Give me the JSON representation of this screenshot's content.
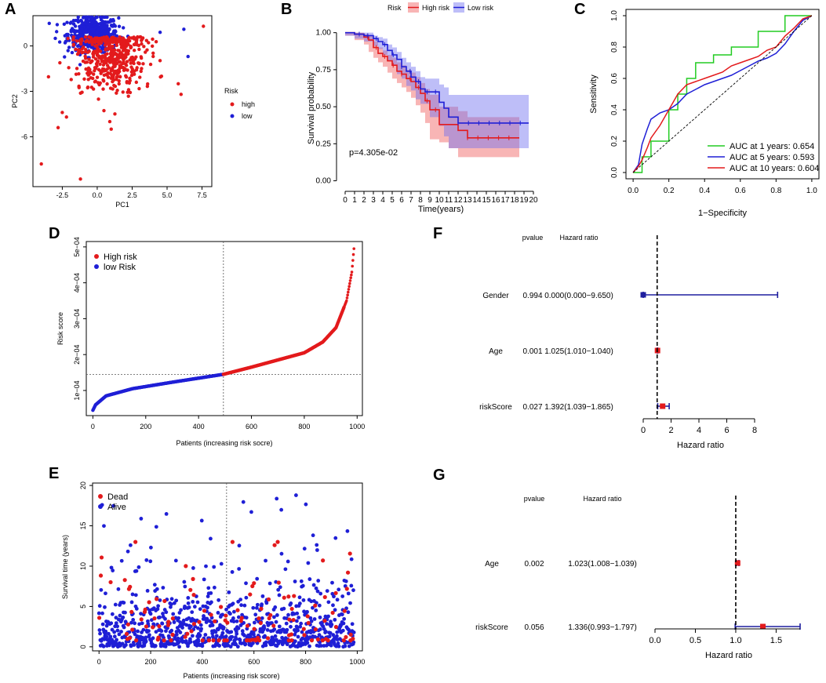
{
  "panels": {
    "A": "A",
    "B": "B",
    "C": "C",
    "D": "D",
    "E": "E",
    "F": "F",
    "G": "G"
  },
  "chart_data": [
    {
      "id": "A",
      "type": "scatter",
      "title": "",
      "xlabel": "PC1",
      "ylabel": "PC2",
      "xlim": [
        -4.6,
        8.2
      ],
      "ylim": [
        -9.3,
        2.0
      ],
      "xticks": [
        "-2.5",
        "0.0",
        "2.5",
        "5.0",
        "7.5"
      ],
      "xtick_values": [
        -2.5,
        0,
        2.5,
        5.0,
        7.5
      ],
      "yticks": [
        "0",
        "-3",
        "-6"
      ],
      "ytick_values": [
        0,
        -3,
        -6
      ],
      "legend_title": "Risk",
      "legend": [
        "high",
        "low"
      ],
      "colors": {
        "high": "#e31a1c",
        "low": "#1f1fd6"
      },
      "series": [
        {
          "name": "high",
          "cluster_center": [
            0.9,
            -0.6
          ],
          "spread": [
            1.3,
            1.3
          ],
          "n": 480,
          "outliers": [
            [
              -4.0,
              -7.8
            ],
            [
              -1.2,
              -8.8
            ],
            [
              -2.8,
              -5.4
            ],
            [
              -2.5,
              -4.4
            ],
            [
              1.0,
              -5.5
            ],
            [
              6.0,
              -3.2
            ],
            [
              7.6,
              1.3
            ],
            [
              4.6,
              -2.0
            ],
            [
              5.8,
              -2.5
            ],
            [
              -2.2,
              -4.7
            ],
            [
              0.9,
              -5.0
            ],
            [
              2.8,
              -2.4
            ]
          ]
        },
        {
          "name": "low",
          "cluster_center": [
            -0.3,
            0.8
          ],
          "spread": [
            0.9,
            0.6
          ],
          "n": 500,
          "outliers": [
            [
              6.2,
              1.1
            ],
            [
              6.5,
              -0.7
            ],
            [
              4.5,
              0.9
            ],
            [
              -3.0,
              0.5
            ]
          ]
        }
      ]
    },
    {
      "id": "B",
      "type": "line",
      "title": "",
      "xlabel": "Time(years)",
      "ylabel": "Survival probability",
      "xlim": [
        0,
        20
      ],
      "ylim": [
        0,
        1
      ],
      "xticks": [
        "0",
        "1",
        "2",
        "3",
        "4",
        "5",
        "6",
        "7",
        "8",
        "9",
        "10",
        "11",
        "12",
        "13",
        "14",
        "15",
        "16",
        "17",
        "18",
        "19",
        "20"
      ],
      "yticks": [
        "0.00",
        "0.25",
        "0.50",
        "0.75",
        "1.00"
      ],
      "ytick_values": [
        0,
        0.25,
        0.5,
        0.75,
        1.0
      ],
      "legend_title": "Risk",
      "legend": [
        "High risk",
        "Low risk"
      ],
      "annotation": "p=4.305e-02",
      "colors": {
        "High risk": "#e31a1c",
        "Low risk": "#1f1fd6"
      },
      "series": [
        {
          "name": "High risk",
          "x": [
            0,
            1,
            2,
            2.5,
            3,
            3.5,
            4,
            4.5,
            5,
            5.5,
            6,
            6.5,
            7,
            7.5,
            8,
            8.5,
            9,
            10,
            11,
            12,
            13,
            18.5
          ],
          "y": [
            1.0,
            0.99,
            0.97,
            0.95,
            0.9,
            0.86,
            0.84,
            0.81,
            0.78,
            0.74,
            0.72,
            0.69,
            0.67,
            0.63,
            0.59,
            0.54,
            0.48,
            0.38,
            0.38,
            0.34,
            0.29,
            0.29
          ],
          "lower": [
            1.0,
            0.98,
            0.95,
            0.92,
            0.87,
            0.83,
            0.8,
            0.77,
            0.73,
            0.69,
            0.66,
            0.63,
            0.6,
            0.56,
            0.51,
            0.46,
            0.39,
            0.28,
            0.26,
            0.22,
            0.16,
            0.16
          ],
          "upper": [
            1.0,
            1.0,
            0.99,
            0.98,
            0.94,
            0.9,
            0.88,
            0.85,
            0.83,
            0.8,
            0.78,
            0.75,
            0.73,
            0.7,
            0.66,
            0.62,
            0.58,
            0.5,
            0.5,
            0.47,
            0.43,
            0.43
          ]
        },
        {
          "name": "Low risk",
          "x": [
            0,
            1,
            2,
            3,
            3.5,
            4,
            4.5,
            5,
            5.5,
            6,
            6.5,
            7,
            7.5,
            8,
            8.5,
            9,
            10,
            10.5,
            11,
            12,
            19.5
          ],
          "y": [
            1.0,
            0.99,
            0.98,
            0.96,
            0.94,
            0.92,
            0.88,
            0.85,
            0.82,
            0.77,
            0.74,
            0.7,
            0.67,
            0.62,
            0.6,
            0.6,
            0.53,
            0.49,
            0.43,
            0.39,
            0.39
          ],
          "lower": [
            1.0,
            0.98,
            0.96,
            0.94,
            0.91,
            0.89,
            0.85,
            0.81,
            0.78,
            0.72,
            0.69,
            0.64,
            0.61,
            0.55,
            0.52,
            0.52,
            0.43,
            0.37,
            0.3,
            0.22,
            0.22
          ],
          "upper": [
            1.0,
            1.0,
            1.0,
            0.98,
            0.97,
            0.96,
            0.92,
            0.9,
            0.87,
            0.83,
            0.8,
            0.77,
            0.74,
            0.7,
            0.69,
            0.69,
            0.65,
            0.63,
            0.58,
            0.58,
            0.58
          ]
        }
      ]
    },
    {
      "id": "C",
      "type": "line",
      "title": "",
      "xlabel": "1−Specificity",
      "ylabel": "Sensitivity",
      "xlim": [
        0,
        1
      ],
      "ylim": [
        0,
        1
      ],
      "xticks": [
        "0.0",
        "0.2",
        "0.4",
        "0.6",
        "0.8",
        "1.0"
      ],
      "yticks": [
        "0.0",
        "0.2",
        "0.4",
        "0.6",
        "0.8",
        "1.0"
      ],
      "legend": [
        "AUC at 1 years: 0.654",
        "AUC at 5 years: 0.593",
        "AUC at 10 years: 0.604"
      ],
      "series": [
        {
          "name": "AUC at 1 years: 0.654",
          "color": "#22cc22",
          "x": [
            0,
            0.05,
            0.05,
            0.1,
            0.1,
            0.2,
            0.2,
            0.25,
            0.25,
            0.3,
            0.3,
            0.35,
            0.35,
            0.45,
            0.45,
            0.55,
            0.55,
            0.6,
            0.6,
            0.7,
            0.7,
            0.85,
            0.85,
            1.0
          ],
          "y": [
            0,
            0,
            0.1,
            0.1,
            0.2,
            0.2,
            0.4,
            0.4,
            0.5,
            0.5,
            0.6,
            0.6,
            0.7,
            0.7,
            0.75,
            0.75,
            0.8,
            0.8,
            0.8,
            0.8,
            0.9,
            0.9,
            1.0,
            1.0
          ]
        },
        {
          "name": "AUC at 5 years: 0.593",
          "color": "#1f1fd6",
          "x": [
            0,
            0.03,
            0.05,
            0.08,
            0.1,
            0.15,
            0.2,
            0.25,
            0.3,
            0.35,
            0.4,
            0.45,
            0.5,
            0.55,
            0.6,
            0.65,
            0.7,
            0.75,
            0.8,
            0.85,
            0.9,
            0.95,
            1.0
          ],
          "y": [
            0,
            0.05,
            0.18,
            0.28,
            0.34,
            0.38,
            0.4,
            0.44,
            0.5,
            0.53,
            0.56,
            0.58,
            0.6,
            0.62,
            0.65,
            0.68,
            0.71,
            0.73,
            0.76,
            0.82,
            0.9,
            0.97,
            1.0
          ]
        },
        {
          "name": "AUC at 10 years: 0.604",
          "color": "#e31a1c",
          "x": [
            0,
            0.03,
            0.05,
            0.08,
            0.1,
            0.15,
            0.2,
            0.25,
            0.3,
            0.35,
            0.4,
            0.45,
            0.5,
            0.55,
            0.6,
            0.65,
            0.7,
            0.75,
            0.8,
            0.85,
            0.9,
            0.95,
            1.0
          ],
          "y": [
            0,
            0.04,
            0.08,
            0.16,
            0.22,
            0.3,
            0.4,
            0.5,
            0.56,
            0.58,
            0.6,
            0.62,
            0.64,
            0.68,
            0.7,
            0.72,
            0.74,
            0.78,
            0.8,
            0.87,
            0.92,
            0.98,
            1.0
          ]
        },
        {
          "name": "reference",
          "color": "#000000",
          "dashed": true,
          "x": [
            0,
            1
          ],
          "y": [
            0,
            1
          ]
        }
      ]
    },
    {
      "id": "D",
      "type": "scatter",
      "title": "",
      "xlabel": "Patients (increasing risk socre)",
      "ylabel": "Risk score",
      "xlim": [
        -25,
        1020
      ],
      "ylim": [
        3e-05,
        0.000515
      ],
      "xticks": [
        "0",
        "200",
        "400",
        "600",
        "800",
        "1000"
      ],
      "xtick_values": [
        0,
        200,
        400,
        600,
        800,
        1000
      ],
      "yticks": [
        "1e−04",
        "2e−04",
        "3e−04",
        "4e−04",
        "5e−04"
      ],
      "ytick_values": [
        0.0001,
        0.0002,
        0.0003,
        0.0004,
        0.0005
      ],
      "legend": [
        "High risk",
        "low Risk"
      ],
      "colors": {
        "High risk": "#e31a1c",
        "low Risk": "#1f1fd6"
      },
      "cutoff_x": 494,
      "cutoff_y": 0.000145,
      "n_patients": 988,
      "curve_anchor_x": [
        0,
        10,
        50,
        150,
        300,
        494,
        600,
        700,
        800,
        870,
        920,
        960,
        980,
        988
      ],
      "curve_anchor_y": [
        4.5e-05,
        6e-05,
        8.5e-05,
        0.000105,
        0.000123,
        0.000145,
        0.000165,
        0.000185,
        0.000205,
        0.000235,
        0.000275,
        0.00035,
        0.00043,
        0.000495
      ]
    },
    {
      "id": "E",
      "type": "scatter",
      "title": "",
      "xlabel": "Patients (increasing risk score)",
      "ylabel": "Survival time (years)",
      "xlim": [
        -25,
        1020
      ],
      "ylim": [
        -0.5,
        20.3
      ],
      "xticks": [
        "0",
        "200",
        "400",
        "600",
        "800",
        "1000"
      ],
      "xtick_values": [
        0,
        200,
        400,
        600,
        800,
        1000
      ],
      "yticks": [
        "0",
        "5",
        "10",
        "15",
        "20"
      ],
      "ytick_values": [
        0,
        5,
        10,
        15,
        20
      ],
      "legend": [
        "Dead",
        "Alive"
      ],
      "colors": {
        "Dead": "#e31a1c",
        "Alive": "#1f1fd6"
      },
      "cutoff_x": 494,
      "n_patients": 988,
      "dead_fraction": 0.12
    },
    {
      "id": "F",
      "type": "forest",
      "title": "",
      "header_pvalue": "pvalue",
      "header_hr": "Hazard ratio",
      "xlabel": "Hazard ratio",
      "xlim": [
        0,
        8
      ],
      "xticks": [
        "0",
        "2",
        "4",
        "6",
        "8"
      ],
      "xtick_values": [
        0,
        2,
        4,
        6,
        8
      ],
      "reference": 1,
      "rows": [
        {
          "label": "Gender",
          "pvalue": "0.994",
          "hr_text": "0.000(0.000−9.650)",
          "hr": 0.0,
          "lo": 0.0,
          "hi": 9.65
        },
        {
          "label": "Age",
          "pvalue": "0.001",
          "hr_text": "1.025(1.010−1.040)",
          "hr": 1.025,
          "lo": 1.01,
          "hi": 1.04
        },
        {
          "label": "riskScore",
          "pvalue": "0.027",
          "hr_text": "1.392(1.039−1.865)",
          "hr": 1.392,
          "lo": 1.039,
          "hi": 1.865
        }
      ]
    },
    {
      "id": "G",
      "type": "forest",
      "title": "",
      "header_pvalue": "pvalue",
      "header_hr": "Hazard ratio",
      "xlabel": "Hazard ratio",
      "xlim": [
        0,
        1.797
      ],
      "xticks": [
        "0.0",
        "0.5",
        "1.0",
        "1.5"
      ],
      "xtick_values": [
        0,
        0.5,
        1.0,
        1.5
      ],
      "reference": 1,
      "rows": [
        {
          "label": "Age",
          "pvalue": "0.002",
          "hr_text": "1.023(1.008−1.039)",
          "hr": 1.023,
          "lo": 1.008,
          "hi": 1.039
        },
        {
          "label": "riskScore",
          "pvalue": "0.056",
          "hr_text": "1.336(0.993−1.797)",
          "hr": 1.336,
          "lo": 0.993,
          "hi": 1.797
        }
      ]
    }
  ]
}
